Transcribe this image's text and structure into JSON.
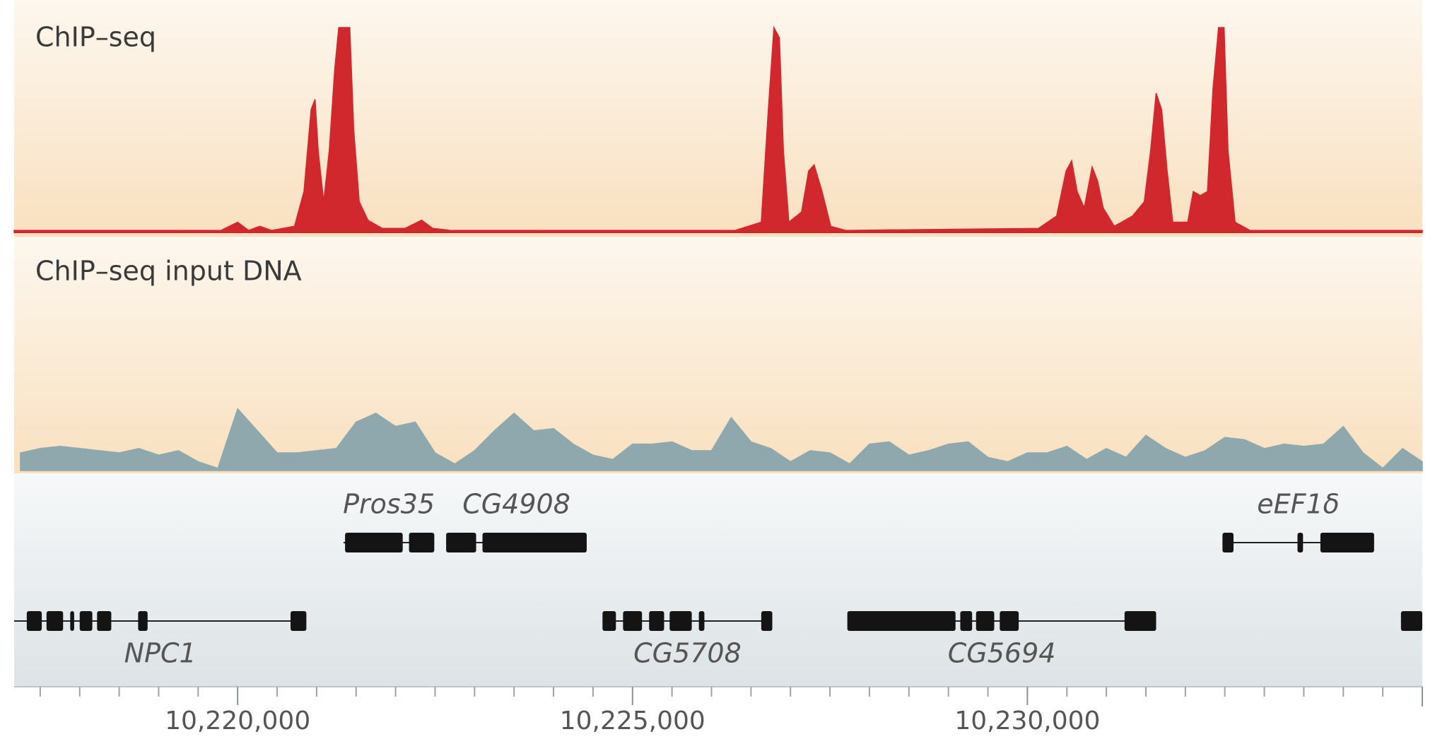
{
  "chart_data": {
    "type": "genome-browser",
    "xlim": [
      10217170,
      10235000
    ],
    "xticks": [
      {
        "value": 10220000,
        "label": "10,220,000"
      },
      {
        "value": 10225000,
        "label": "10,225,000"
      },
      {
        "value": 10230000,
        "label": "10,230,000"
      }
    ],
    "xminor": [
      10217500,
      10218000,
      10218500,
      10219000,
      10219500,
      10220500,
      10221000,
      10221500,
      10222000,
      10222500,
      10223000,
      10223500,
      10224000,
      10224500,
      10225500,
      10226000,
      10226500,
      10227000,
      10227500,
      10228000,
      10228500,
      10229000,
      10229500,
      10230500,
      10231000,
      10231500,
      10232000,
      10232500,
      10233000,
      10233500,
      10234000,
      10234500,
      10235000
    ],
    "tracks": [
      {
        "name": "ChIP–seq",
        "color": "#d0282c",
        "ylim": [
          0,
          100
        ],
        "x": [
          10217170,
          10219790,
          10220000,
          10220140,
          10220280,
          10220430,
          10220720,
          10220840,
          10220930,
          10220980,
          10221020,
          10221090,
          10221160,
          10221230,
          10221280,
          10221420,
          10221470,
          10221540,
          10221650,
          10221830,
          10222120,
          10222330,
          10222470,
          10222700,
          10226300,
          10226630,
          10226720,
          10226790,
          10226860,
          10226910,
          10226980,
          10227140,
          10227230,
          10227300,
          10227400,
          10227510,
          10227700,
          10230140,
          10230370,
          10230490,
          10230560,
          10230630,
          10230720,
          10230820,
          10230890,
          10230960,
          10231100,
          10231330,
          10231480,
          10231560,
          10231630,
          10231700,
          10231770,
          10231840,
          10232030,
          10232100,
          10232190,
          10232280,
          10232350,
          10232420,
          10232490,
          10232540,
          10232630,
          10232820,
          10235000
        ],
        "values": [
          1,
          1,
          5,
          1,
          3,
          1,
          3,
          20,
          60,
          65,
          40,
          15,
          40,
          80,
          100,
          100,
          50,
          15,
          6,
          2,
          2,
          6,
          2,
          1,
          1,
          5,
          60,
          100,
          95,
          40,
          5,
          10,
          30,
          33,
          20,
          3,
          1,
          2,
          8,
          30,
          35,
          20,
          12,
          32,
          25,
          12,
          3,
          8,
          15,
          40,
          68,
          60,
          30,
          5,
          5,
          20,
          18,
          20,
          70,
          100,
          100,
          40,
          5,
          1,
          1
        ]
      },
      {
        "name": "ChIP–seq input DNA",
        "color": "#8ea8ad",
        "ylim": [
          0,
          100
        ],
        "x": [
          10217250,
          10217500,
          10217750,
          10218000,
          10218250,
          10218500,
          10218750,
          10219000,
          10219250,
          10219500,
          10219750,
          10220000,
          10220250,
          10220500,
          10220750,
          10221000,
          10221250,
          10221500,
          10221750,
          10222000,
          10222250,
          10222500,
          10222750,
          10223000,
          10223250,
          10223500,
          10223750,
          10224000,
          10224250,
          10224500,
          10224750,
          10225000,
          10225250,
          10225500,
          10225750,
          10226000,
          10226250,
          10226500,
          10226750,
          10227000,
          10227250,
          10227500,
          10227750,
          10228000,
          10228250,
          10228500,
          10228750,
          10229000,
          10229250,
          10229500,
          10229750,
          10230000,
          10230250,
          10230500,
          10230750,
          10231000,
          10231250,
          10231500,
          10231750,
          10232000,
          10232250,
          10232500,
          10232750,
          10233000,
          10233250,
          10233500,
          10233750,
          10234000,
          10234250,
          10234500,
          10234750,
          10235000
        ],
        "values": [
          8,
          10,
          11,
          10,
          9,
          8,
          10,
          7,
          9,
          4,
          1,
          28,
          18,
          8,
          8,
          9,
          10,
          22,
          26,
          20,
          22,
          8,
          3,
          9,
          18,
          26,
          18,
          19,
          12,
          7,
          5,
          12,
          12,
          13,
          9,
          9,
          24,
          13,
          10,
          4,
          9,
          8,
          3,
          12,
          13,
          7,
          9,
          12,
          13,
          6,
          4,
          8,
          8,
          11,
          5,
          10,
          6,
          16,
          10,
          6,
          9,
          15,
          14,
          10,
          12,
          11,
          12,
          20,
          8,
          1,
          10,
          4
        ]
      }
    ],
    "gene_rows": [
      [
        {
          "label": "Pros35",
          "start": 10221340,
          "end": 10222490,
          "exons": [
            [
              10221360,
              10222090
            ],
            [
              10222170,
              10222490
            ]
          ]
        },
        {
          "label": "CG4908",
          "start": 10222640,
          "end": 10224420,
          "exons": [
            [
              10222640,
              10223020
            ],
            [
              10223100,
              10224420
            ]
          ]
        },
        {
          "label": "eEF1δ",
          "start": 10232470,
          "end": 10234390,
          "exons": [
            [
              10232470,
              10232610
            ],
            [
              10233420,
              10233490
            ],
            [
              10233710,
              10234390
            ]
          ]
        }
      ],
      [
        {
          "label": "NPC1",
          "start": 10217170,
          "end": 10220870,
          "exons": [
            [
              10217330,
              10217520
            ],
            [
              10217580,
              10217790
            ],
            [
              10217880,
              10217930
            ],
            [
              10218000,
              10218160
            ],
            [
              10218220,
              10218400
            ],
            [
              10218740,
              10218860
            ],
            [
              10220670,
              10220870
            ]
          ]
        },
        {
          "label": "CG5708",
          "start": 10224620,
          "end": 10226770,
          "exons": [
            [
              10224620,
              10224790
            ],
            [
              10224880,
              10225120
            ],
            [
              10225210,
              10225400
            ],
            [
              10225470,
              10225750
            ],
            [
              10225840,
              10225910
            ],
            [
              10226630,
              10226770
            ]
          ]
        },
        {
          "label": "CG5694",
          "start": 10227720,
          "end": 10231630,
          "exons": [
            [
              10227720,
              10229090
            ],
            [
              10229150,
              10229300
            ],
            [
              10229350,
              10229580
            ],
            [
              10229650,
              10229890
            ],
            [
              10231230,
              10231630
            ]
          ]
        },
        {
          "label": null,
          "start": 10234730,
          "end": 10235000,
          "exons": [
            [
              10234730,
              10235000
            ]
          ]
        }
      ]
    ]
  }
}
